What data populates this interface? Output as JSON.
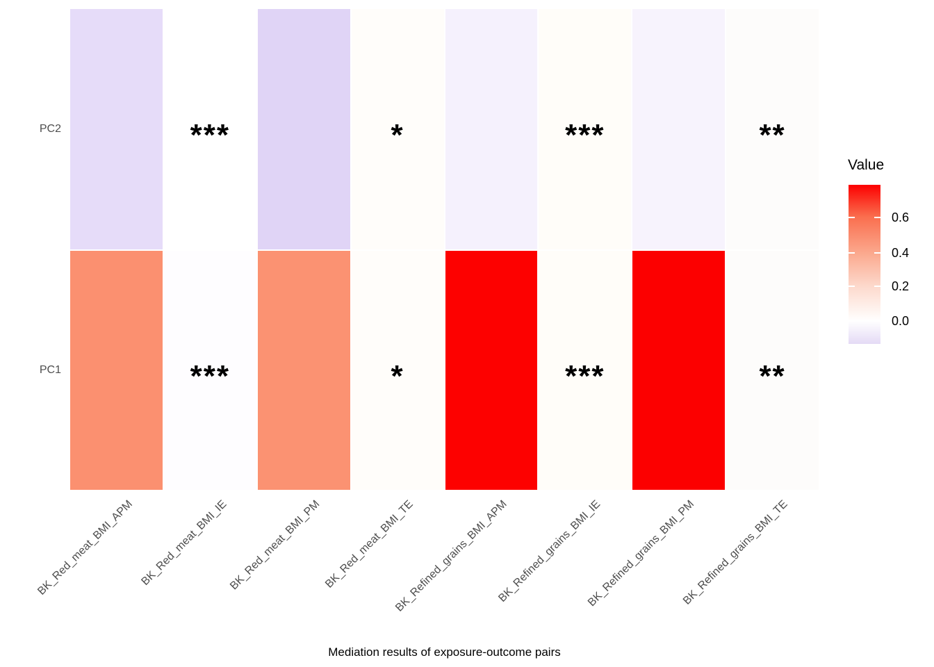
{
  "figure": {
    "background": "#FFFFFF"
  },
  "chart_data": {
    "type": "heatmap",
    "title": "",
    "xlabel": "Mediation results of exposure-outcome pairs",
    "ylabel": "",
    "x_categories": [
      "BK_Red_meat_BMI_APM",
      "BK_Red_meat_BMI_IE",
      "BK_Red_meat_BMI_PM",
      "BK_Red_meat_BMI_TE",
      "BK_Refined_grains_BMI_APM",
      "BK_Refined_grains_BMI_IE",
      "BK_Refined_grains_BMI_PM",
      "BK_Refined_grains_BMI_TE"
    ],
    "y_categories_top_to_bottom": [
      "PC2",
      "PC1"
    ],
    "values": [
      [
        -0.11,
        0.0,
        -0.13,
        0.02,
        -0.04,
        0.02,
        -0.04,
        0.01
      ],
      [
        0.45,
        0.0,
        0.45,
        0.02,
        0.78,
        0.02,
        0.78,
        0.01
      ]
    ],
    "significance_annotations": [
      [
        "",
        "***",
        "",
        "*",
        "",
        "***",
        "",
        "**"
      ],
      [
        "",
        "***",
        "",
        "*",
        "",
        "***",
        "",
        "**"
      ]
    ],
    "cell_colors": [
      [
        "#E6DCF9",
        "#FFFFFF",
        "#E0D4F6",
        "#FFFDFA",
        "#F5F1FD",
        "#FFFDF9",
        "#F7F3FD",
        "#FDFCFB"
      ],
      [
        "#FB9070",
        "#FEFDFF",
        "#FB9272",
        "#FFFDFA",
        "#FD0100",
        "#FFFDF9",
        "#FC0000",
        "#FDFCFB"
      ]
    ],
    "grid": false,
    "legend": {
      "position": "right",
      "title": "Value",
      "tick_labels": [
        "0.6",
        "0.4",
        "0.2",
        "0.0"
      ],
      "range": [
        -0.13,
        0.78
      ],
      "high_color": "#FF0000",
      "mid_color": "#FFFFFF",
      "low_color": "#E4DAF8"
    }
  }
}
